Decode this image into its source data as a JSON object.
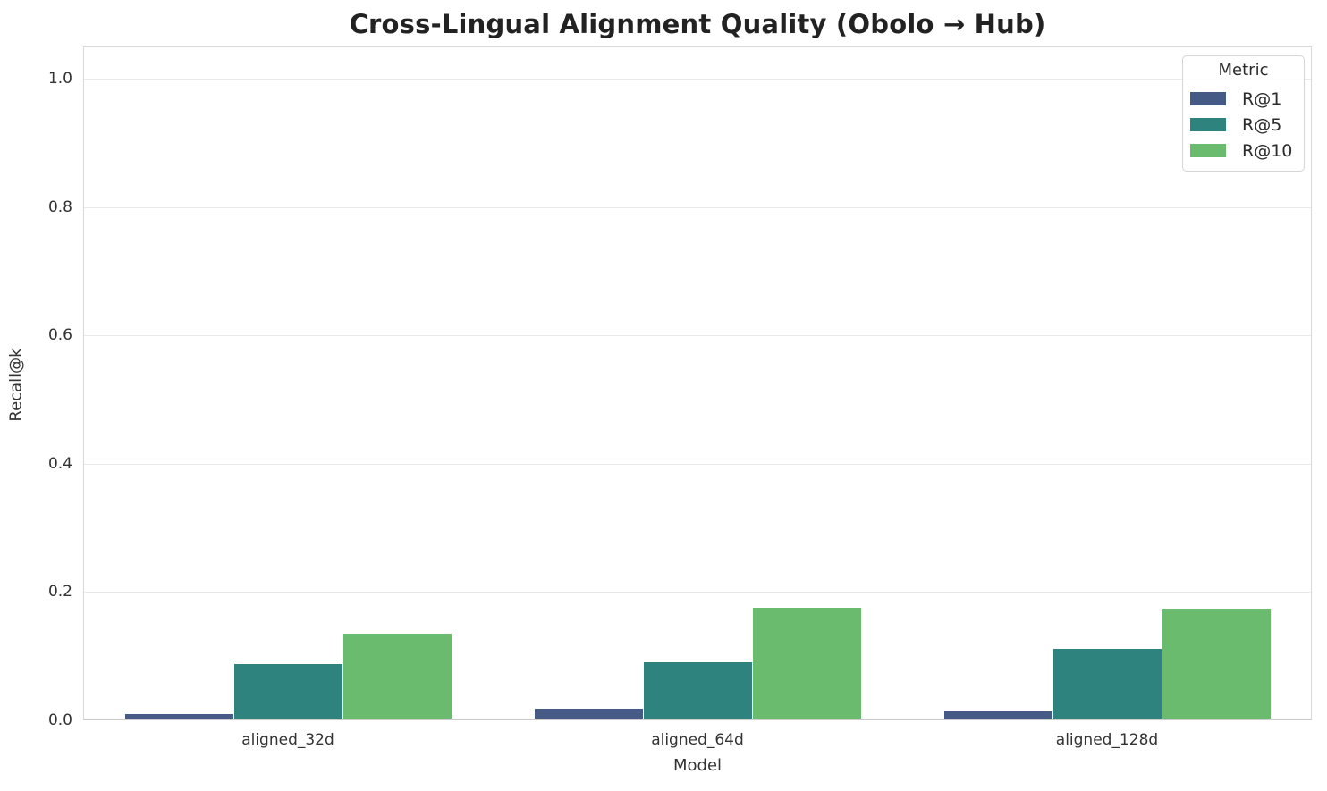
{
  "figure": {
    "title": "Cross-Lingual Alignment Quality (Obolo → Hub)"
  },
  "chart_data": {
    "type": "bar",
    "title": "Cross-Lingual Alignment Quality (Obolo → Hub)",
    "xlabel": "Model",
    "ylabel": "Recall@k",
    "categories": [
      "aligned_32d",
      "aligned_64d",
      "aligned_128d"
    ],
    "series": [
      {
        "name": "R@1",
        "color": "#455a84",
        "values": [
          0.007,
          0.015,
          0.011
        ]
      },
      {
        "name": "R@5",
        "color": "#2f837f",
        "values": [
          0.085,
          0.088,
          0.108
        ]
      },
      {
        "name": "R@10",
        "color": "#6bbb6e",
        "values": [
          0.132,
          0.173,
          0.171
        ]
      }
    ],
    "ylim": [
      0,
      1.05
    ],
    "yticks": [
      "0.0",
      "0.2",
      "0.4",
      "0.6",
      "0.8",
      "1.0"
    ],
    "grid": true,
    "legend": {
      "title": "Metric",
      "position": "upper right"
    }
  }
}
